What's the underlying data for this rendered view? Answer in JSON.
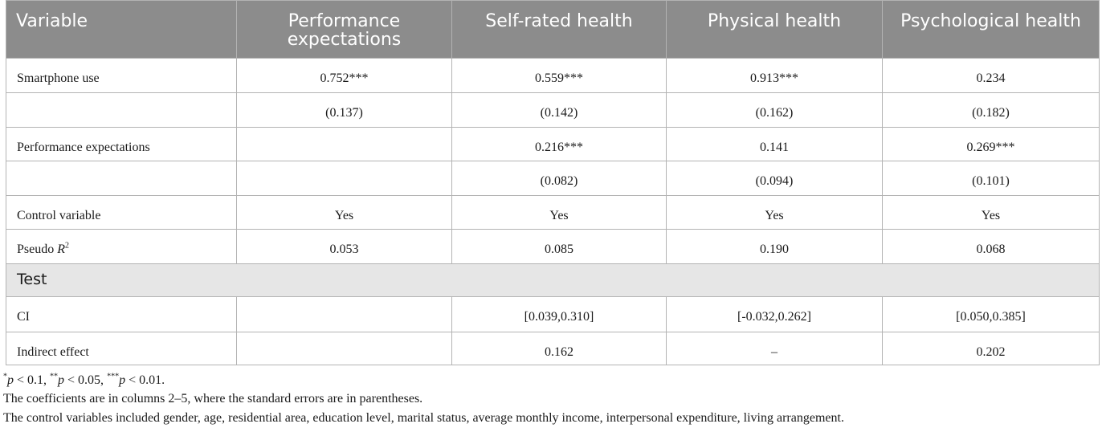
{
  "table": {
    "headers": [
      "Variable",
      "Performance expectations",
      "Self-rated health",
      "Physical health",
      "Psychological health"
    ],
    "rows": [
      {
        "label": "Smartphone use",
        "values": [
          "0.752***",
          "0.559***",
          "0.913***",
          "0.234"
        ]
      },
      {
        "label": "",
        "values": [
          "(0.137)",
          "(0.142)",
          "(0.162)",
          "(0.182)"
        ]
      },
      {
        "label": "Performance expectations",
        "values": [
          "",
          "0.216***",
          "0.141",
          "0.269***"
        ]
      },
      {
        "label": "",
        "values": [
          "",
          "(0.082)",
          "(0.094)",
          "(0.101)"
        ]
      },
      {
        "label": "Control variable",
        "values": [
          "Yes",
          "Yes",
          "Yes",
          "Yes"
        ]
      },
      {
        "label": "Pseudo R",
        "label_sup": "2",
        "values": [
          "0.053",
          "0.085",
          "0.190",
          "0.068"
        ]
      }
    ],
    "section_label": "Test",
    "test_rows": [
      {
        "label": "CI",
        "values": [
          "",
          "[0.039,0.310]",
          "[-0.032,0.262]",
          "[0.050,0.385]"
        ]
      },
      {
        "label": "Indirect effect",
        "values": [
          "",
          "0.162",
          "–",
          "0.202"
        ]
      }
    ]
  },
  "footnotes": {
    "significance": {
      "mark1": "*",
      "p1": "p",
      "t1": " < 0.1, ",
      "mark2": "**",
      "p2": "p",
      "t2": " < 0.05, ",
      "mark3": "***",
      "p3": "p",
      "t3": " < 0.01."
    },
    "note1": "The coefficients are in columns 2–5, where the standard errors are in parentheses.",
    "note2": "The control variables included gender, age, residential area, education level, marital status, average monthly income, interpersonal expenditure, living arrangement."
  }
}
